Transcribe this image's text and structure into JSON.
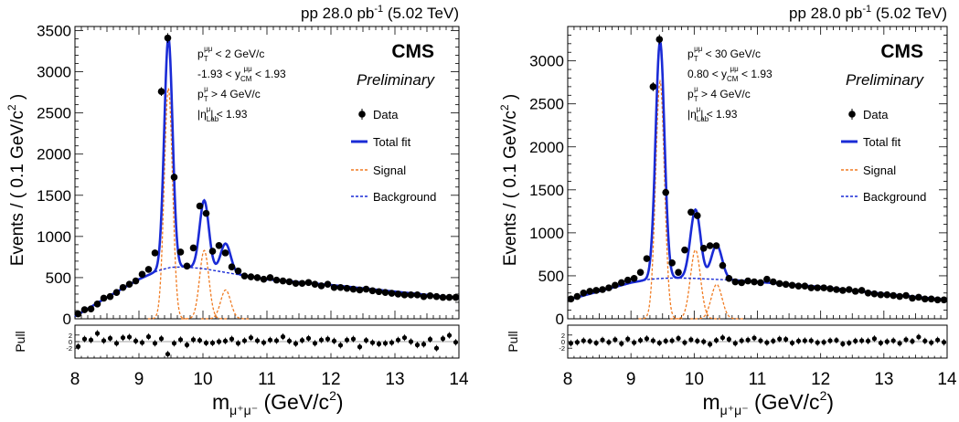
{
  "colors": {
    "total_fit": "#1a2bd6",
    "signal": "#f07a20",
    "background": "#1a2bd6",
    "data": "#000000"
  },
  "chart_data": [
    {
      "type": "line",
      "lumi": {
        "main": "pp 28.0 pb",
        "sup": "-1",
        "tail": " (5.02 TeV)"
      },
      "cms": "CMS",
      "preliminary": "Preliminary",
      "cuts": [
        {
          "base": "p",
          "sub": "T",
          "sup": "μμ",
          "tail": " < 2 GeV/c"
        },
        {
          "pre": "-1.93 < ",
          "base": "y",
          "sub": "CM",
          "sup": "μμ",
          "tail": " < 1.93"
        },
        {
          "base": "p",
          "sub": "T",
          "sup": "μ",
          "tail": " > 4 GeV/c"
        },
        {
          "base": "|η",
          "sub": "Lab",
          "sup": "μ",
          "tail": "| < 1.93"
        }
      ],
      "legend": {
        "data": "Data",
        "total": "Total fit",
        "signal": "Signal",
        "background": "Background"
      },
      "ylabel_main": "Events / ( 0.1 GeV/c",
      "ylabel_sup": "2",
      "ylabel_tail": " )",
      "pull_label": "Pull",
      "xlabel": {
        "m": "m",
        "sub": "μ⁺μ⁻",
        "tail": " (GeV/c",
        "sup": "2",
        "end": ")"
      },
      "xlim": [
        8,
        14
      ],
      "ylim": [
        0,
        3550
      ],
      "pull_ylim": [
        -5,
        5
      ],
      "xticks": [
        "8",
        "9",
        "10",
        "11",
        "12",
        "13",
        "14"
      ],
      "yticks": [
        "0",
        "500",
        "1000",
        "1500",
        "2000",
        "2500",
        "3000",
        "3500"
      ],
      "ytick_values": [
        0,
        500,
        1000,
        1500,
        2000,
        2500,
        3000,
        3500
      ],
      "pull_ticks": [
        "2",
        "0",
        "-2"
      ],
      "peaks": {
        "mean": [
          9.46,
          10.02,
          10.355
        ],
        "sigma": [
          0.065,
          0.072,
          0.078
        ],
        "amp": [
          2800,
          830,
          350
        ]
      },
      "background_curve": {
        "x": [
          8.0,
          8.5,
          9.0,
          9.3,
          9.5,
          9.7,
          10.0,
          10.3,
          10.6,
          11.0,
          12.0,
          13.0,
          14.0
        ],
        "y": [
          30,
          260,
          480,
          585,
          625,
          630,
          610,
          570,
          530,
          480,
          410,
          330,
          250
        ]
      },
      "data_points": {
        "x": [
          8.05,
          8.15,
          8.25,
          8.35,
          8.45,
          8.55,
          8.65,
          8.75,
          8.85,
          8.95,
          9.05,
          9.15,
          9.25,
          9.35,
          9.45,
          9.55,
          9.65,
          9.75,
          9.85,
          9.95,
          10.05,
          10.15,
          10.25,
          10.35,
          10.45,
          10.55,
          10.65,
          10.75,
          10.85,
          10.95,
          11.05,
          11.15,
          11.25,
          11.35,
          11.45,
          11.55,
          11.65,
          11.75,
          11.85,
          11.95,
          12.05,
          12.15,
          12.25,
          12.35,
          12.45,
          12.55,
          12.65,
          12.75,
          12.85,
          12.95,
          13.05,
          13.15,
          13.25,
          13.35,
          13.45,
          13.55,
          13.65,
          13.75,
          13.85,
          13.95
        ],
        "y": [
          60,
          110,
          120,
          180,
          250,
          270,
          320,
          380,
          420,
          460,
          540,
          600,
          800,
          2760,
          3410,
          1720,
          810,
          640,
          860,
          1370,
          1280,
          820,
          890,
          800,
          630,
          580,
          520,
          510,
          500,
          480,
          500,
          470,
          460,
          450,
          430,
          430,
          440,
          420,
          400,
          420,
          380,
          380,
          370,
          360,
          350,
          360,
          340,
          330,
          320,
          310,
          300,
          290,
          290,
          290,
          270,
          280,
          270,
          260,
          260,
          260
        ]
      },
      "pulls": [
        -1.5,
        0.8,
        0.5,
        2.5,
        0.3,
        1.0,
        -0.5,
        1.2,
        1.4,
        0.2,
        -0.3,
        1.5,
        -0.5,
        0.9,
        -3.8,
        -0.5,
        0.6,
        -1.0,
        0.6,
        0.4,
        -0.4,
        -0.4,
        0.0,
        0.2,
        0.8,
        -0.5,
        0.3,
        1.2,
        0.3,
        -0.3,
        0.5,
        0.3,
        1.5,
        0.2,
        -0.6,
        0.4,
        1.0,
        -0.5,
        0.5,
        0.8,
        0.2,
        -1.1,
        0.5,
        0.8,
        -1.6,
        0.4,
        -0.3,
        -0.7,
        -0.5,
        -0.3,
        0.5,
        1.2,
        0.0,
        -1.0,
        -0.8,
        0.7,
        -2.0,
        0.9,
        1.9,
        -0.2
      ]
    },
    {
      "type": "line",
      "lumi": {
        "main": "pp 28.0 pb",
        "sup": "-1",
        "tail": " (5.02 TeV)"
      },
      "cms": "CMS",
      "preliminary": "Preliminary",
      "cuts": [
        {
          "base": "p",
          "sub": "T",
          "sup": "μμ",
          "tail": " < 30 GeV/c"
        },
        {
          "pre": "0.80 < ",
          "base": "y",
          "sub": "CM",
          "sup": "μμ",
          "tail": " < 1.93"
        },
        {
          "base": "p",
          "sub": "T",
          "sup": "μ",
          "tail": " > 4 GeV/c"
        },
        {
          "base": "|η",
          "sub": "Lab",
          "sup": "μ",
          "tail": "| < 1.93"
        }
      ],
      "legend": {
        "data": "Data",
        "total": "Total fit",
        "signal": "Signal",
        "background": "Background"
      },
      "ylabel_main": "Events / ( 0.1 GeV/c",
      "ylabel_sup": "2",
      "ylabel_tail": " )",
      "pull_label": "Pull",
      "xlabel": {
        "m": "m",
        "sub": "μ⁺μ⁻",
        "tail": " (GeV/c",
        "sup": "2",
        "end": ")"
      },
      "xlim": [
        8,
        14
      ],
      "ylim": [
        0,
        3400
      ],
      "pull_ylim": [
        -5,
        5
      ],
      "xticks": [
        "8",
        "9",
        "10",
        "11",
        "12",
        "13",
        "14"
      ],
      "yticks": [
        "0",
        "500",
        "1000",
        "1500",
        "2000",
        "2500",
        "3000"
      ],
      "ytick_values": [
        0,
        500,
        1000,
        1500,
        2000,
        2500,
        3000
      ],
      "pull_ticks": [
        "2",
        "0",
        "-2"
      ],
      "peaks": {
        "mean": [
          9.46,
          10.02,
          10.355
        ],
        "sigma": [
          0.07,
          0.08,
          0.085
        ],
        "amp": [
          2760,
          800,
          400
        ]
      },
      "background_curve": {
        "x": [
          8.0,
          8.5,
          9.0,
          9.3,
          9.5,
          9.7,
          10.0,
          10.3,
          10.6,
          11.0,
          12.0,
          13.0,
          14.0
        ],
        "y": [
          220,
          320,
          420,
          460,
          470,
          475,
          470,
          460,
          450,
          430,
          370,
          290,
          220
        ]
      },
      "data_points": {
        "x": [
          8.05,
          8.15,
          8.25,
          8.35,
          8.45,
          8.55,
          8.65,
          8.75,
          8.85,
          8.95,
          9.05,
          9.15,
          9.25,
          9.35,
          9.45,
          9.55,
          9.65,
          9.75,
          9.85,
          9.95,
          10.05,
          10.15,
          10.25,
          10.35,
          10.45,
          10.55,
          10.65,
          10.75,
          10.85,
          10.95,
          11.05,
          11.15,
          11.25,
          11.35,
          11.45,
          11.55,
          11.65,
          11.75,
          11.85,
          11.95,
          12.05,
          12.15,
          12.25,
          12.35,
          12.45,
          12.55,
          12.65,
          12.75,
          12.85,
          12.95,
          13.05,
          13.15,
          13.25,
          13.35,
          13.45,
          13.55,
          13.65,
          13.75,
          13.85,
          13.95
        ],
        "y": [
          230,
          260,
          300,
          320,
          330,
          340,
          360,
          390,
          420,
          450,
          470,
          540,
          700,
          2700,
          3250,
          1470,
          650,
          540,
          800,
          1240,
          1200,
          820,
          850,
          850,
          620,
          470,
          430,
          420,
          440,
          430,
          420,
          460,
          430,
          410,
          400,
          390,
          380,
          380,
          360,
          360,
          360,
          350,
          340,
          330,
          340,
          320,
          330,
          300,
          290,
          280,
          280,
          270,
          260,
          270,
          240,
          250,
          230,
          230,
          220,
          220
        ]
      },
      "pulls": [
        -0.5,
        -0.2,
        0.3,
        0.1,
        -0.4,
        0.5,
        -0.2,
        0.6,
        -0.6,
        0.8,
        -0.3,
        0.4,
        0.9,
        0.3,
        -0.4,
        0.2,
        0.3,
        1.0,
        -0.3,
        0.6,
        0.2,
        0.0,
        -0.8,
        0.4,
        1.2,
        0.7,
        -0.5,
        0.3,
        0.5,
        1.1,
        0.3,
        -0.3,
        0.2,
        0.8,
        0.7,
        -0.4,
        0.2,
        0.3,
        0.3,
        -0.3,
        -0.2,
        0.3,
        0.4,
        -0.7,
        -0.4,
        0.2,
        0.3,
        0.2,
        0.9,
        -0.4,
        0.0,
        0.3,
        -0.5,
        0.6,
        0.1,
        1.4,
        0.2,
        -0.3,
        0.5,
        -0.2
      ]
    }
  ]
}
